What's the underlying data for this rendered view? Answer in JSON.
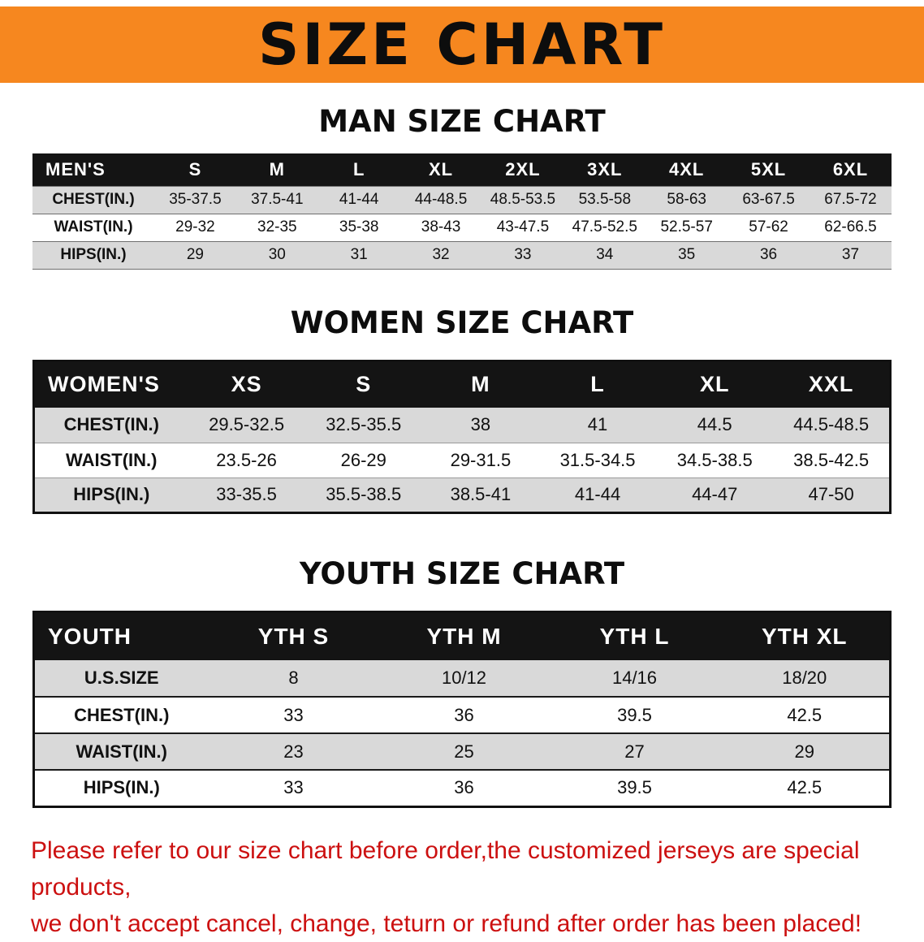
{
  "colors": {
    "accent_orange": "#f6871f",
    "header_black": "#141414",
    "row_gray": "#d9d9d9",
    "disclaimer_red": "#cc1010"
  },
  "banner": {
    "title": "SIZE CHART"
  },
  "sections": [
    {
      "heading": "MAN SIZE CHART",
      "table": {
        "header": [
          "MEN'S",
          "S",
          "M",
          "L",
          "XL",
          "2XL",
          "3XL",
          "4XL",
          "5XL",
          "6XL"
        ],
        "rows": [
          [
            "CHEST(IN.)",
            "35-37.5",
            "37.5-41",
            "41-44",
            "44-48.5",
            "48.5-53.5",
            "53.5-58",
            "58-63",
            "63-67.5",
            "67.5-72"
          ],
          [
            "WAIST(IN.)",
            "29-32",
            "32-35",
            "35-38",
            "38-43",
            "43-47.5",
            "47.5-52.5",
            "52.5-57",
            "57-62",
            "62-66.5"
          ],
          [
            "HIPS(IN.)",
            "29",
            "30",
            "31",
            "32",
            "33",
            "34",
            "35",
            "36",
            "37"
          ]
        ]
      }
    },
    {
      "heading": "WOMEN SIZE CHART",
      "table": {
        "header": [
          "WOMEN'S",
          "XS",
          "S",
          "M",
          "L",
          "XL",
          "XXL"
        ],
        "rows": [
          [
            "CHEST(IN.)",
            "29.5-32.5",
            "32.5-35.5",
            "38",
            "41",
            "44.5",
            "44.5-48.5"
          ],
          [
            "WAIST(IN.)",
            "23.5-26",
            "26-29",
            "29-31.5",
            "31.5-34.5",
            "34.5-38.5",
            "38.5-42.5"
          ],
          [
            "HIPS(IN.)",
            "33-35.5",
            "35.5-38.5",
            "38.5-41",
            "41-44",
            "44-47",
            "47-50"
          ]
        ]
      }
    },
    {
      "heading": "YOUTH SIZE CHART",
      "table": {
        "header": [
          "YOUTH",
          "YTH S",
          "YTH M",
          "YTH L",
          "YTH XL"
        ],
        "rows": [
          [
            "U.S.SIZE",
            "8",
            "10/12",
            "14/16",
            "18/20"
          ],
          [
            "CHEST(IN.)",
            "33",
            "36",
            "39.5",
            "42.5"
          ],
          [
            "WAIST(IN.)",
            "23",
            "25",
            "27",
            "29"
          ],
          [
            "HIPS(IN.)",
            "33",
            "36",
            "39.5",
            "42.5"
          ]
        ]
      }
    }
  ],
  "footer": {
    "lines": [
      "Please refer to our size chart before order,the customized jerseys are special products,",
      "we don't accept cancel, change, teturn or refund after order has been placed!"
    ]
  }
}
